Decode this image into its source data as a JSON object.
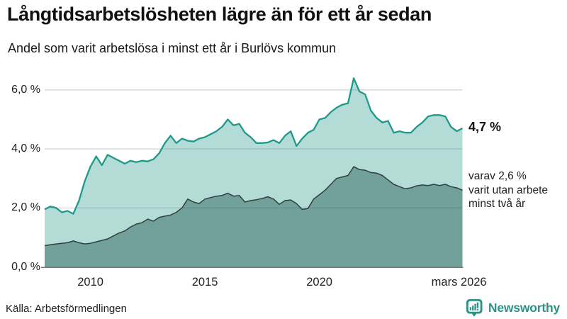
{
  "header": {
    "title": "Långtidsarbetslösheten lägre än för ett år sedan",
    "subtitle": "Andel som varit arbetslösa i minst ett år i Burlövs kommun"
  },
  "annotations": {
    "latest_value": "4,7 %",
    "series2_lines": [
      "varav 2,6 %",
      "varit utan arbete",
      "minst två år"
    ]
  },
  "footer": {
    "source": "Källa: Arbetsförmedlingen",
    "brand": "Newsworthy",
    "brand_color": "#2d9285",
    "logo_icon": "bar-chart-speech-bubble-icon"
  },
  "chart_data": {
    "type": "area",
    "x_unit": "year (monthly series)",
    "x_range": [
      2008.0,
      2026.25
    ],
    "y_range": [
      0,
      6.5
    ],
    "grid": "horizontal",
    "legend": "none",
    "yticks": [
      {
        "label": "6,0 %",
        "value": 6
      },
      {
        "label": "4,0 %",
        "value": 4
      },
      {
        "label": "2,0 %",
        "value": 2
      },
      {
        "label": "0,0 %",
        "value": 0
      }
    ],
    "xticks": [
      {
        "label": "2010",
        "year": 2010
      },
      {
        "label": "2015",
        "year": 2015
      },
      {
        "label": "2020",
        "year": 2020
      },
      {
        "label": "mars 2026",
        "year": 2026.1
      }
    ],
    "colors": {
      "series1_line": "#1f998a",
      "series1_fill": "#b5dbd5",
      "series2_line": "#31403c",
      "series2_fill": "#74a19b",
      "grid": "#cfd3d5",
      "axis": "#6e7675"
    },
    "series": [
      {
        "name": "Arbetslösa minst ett år",
        "latest_label": "4,7 %",
        "latest_value": 4.7,
        "points": [
          [
            2008.0,
            1.95
          ],
          [
            2008.25,
            2.05
          ],
          [
            2008.5,
            2.0
          ],
          [
            2008.75,
            1.85
          ],
          [
            2009.0,
            1.9
          ],
          [
            2009.25,
            1.8
          ],
          [
            2009.5,
            2.25
          ],
          [
            2009.75,
            2.9
          ],
          [
            2010.0,
            3.4
          ],
          [
            2010.25,
            3.75
          ],
          [
            2010.5,
            3.45
          ],
          [
            2010.75,
            3.8
          ],
          [
            2011.0,
            3.7
          ],
          [
            2011.25,
            3.6
          ],
          [
            2011.5,
            3.5
          ],
          [
            2011.75,
            3.6
          ],
          [
            2012.0,
            3.55
          ],
          [
            2012.25,
            3.6
          ],
          [
            2012.5,
            3.58
          ],
          [
            2012.75,
            3.65
          ],
          [
            2013.0,
            3.85
          ],
          [
            2013.25,
            4.2
          ],
          [
            2013.5,
            4.45
          ],
          [
            2013.75,
            4.2
          ],
          [
            2014.0,
            4.35
          ],
          [
            2014.25,
            4.28
          ],
          [
            2014.5,
            4.25
          ],
          [
            2014.75,
            4.35
          ],
          [
            2015.0,
            4.4
          ],
          [
            2015.25,
            4.5
          ],
          [
            2015.5,
            4.6
          ],
          [
            2015.75,
            4.75
          ],
          [
            2016.0,
            5.0
          ],
          [
            2016.25,
            4.8
          ],
          [
            2016.5,
            4.85
          ],
          [
            2016.75,
            4.55
          ],
          [
            2017.0,
            4.4
          ],
          [
            2017.25,
            4.2
          ],
          [
            2017.5,
            4.2
          ],
          [
            2017.75,
            4.22
          ],
          [
            2018.0,
            4.3
          ],
          [
            2018.25,
            4.2
          ],
          [
            2018.5,
            4.45
          ],
          [
            2018.75,
            4.6
          ],
          [
            2019.0,
            4.1
          ],
          [
            2019.25,
            4.35
          ],
          [
            2019.5,
            4.55
          ],
          [
            2019.75,
            4.65
          ],
          [
            2020.0,
            5.0
          ],
          [
            2020.25,
            5.05
          ],
          [
            2020.5,
            5.25
          ],
          [
            2020.75,
            5.4
          ],
          [
            2021.0,
            5.5
          ],
          [
            2021.25,
            5.55
          ],
          [
            2021.5,
            6.4
          ],
          [
            2021.75,
            5.95
          ],
          [
            2022.0,
            5.85
          ],
          [
            2022.25,
            5.3
          ],
          [
            2022.5,
            5.05
          ],
          [
            2022.75,
            4.9
          ],
          [
            2023.0,
            4.95
          ],
          [
            2023.25,
            4.55
          ],
          [
            2023.5,
            4.6
          ],
          [
            2023.75,
            4.55
          ],
          [
            2024.0,
            4.55
          ],
          [
            2024.25,
            4.75
          ],
          [
            2024.5,
            4.9
          ],
          [
            2024.75,
            5.1
          ],
          [
            2025.0,
            5.15
          ],
          [
            2025.25,
            5.15
          ],
          [
            2025.5,
            5.1
          ],
          [
            2025.75,
            4.75
          ],
          [
            2026.0,
            4.6
          ],
          [
            2026.25,
            4.7
          ]
        ]
      },
      {
        "name": "Varav utan arbete minst två år",
        "latest_label": "2,6 %",
        "latest_value": 2.6,
        "points": [
          [
            2008.0,
            0.72
          ],
          [
            2008.25,
            0.75
          ],
          [
            2008.5,
            0.78
          ],
          [
            2008.75,
            0.8
          ],
          [
            2009.0,
            0.82
          ],
          [
            2009.25,
            0.88
          ],
          [
            2009.5,
            0.82
          ],
          [
            2009.75,
            0.78
          ],
          [
            2010.0,
            0.8
          ],
          [
            2010.25,
            0.85
          ],
          [
            2010.5,
            0.9
          ],
          [
            2010.75,
            0.95
          ],
          [
            2011.0,
            1.05
          ],
          [
            2011.25,
            1.15
          ],
          [
            2011.5,
            1.22
          ],
          [
            2011.75,
            1.35
          ],
          [
            2012.0,
            1.45
          ],
          [
            2012.25,
            1.5
          ],
          [
            2012.5,
            1.62
          ],
          [
            2012.75,
            1.55
          ],
          [
            2013.0,
            1.68
          ],
          [
            2013.25,
            1.72
          ],
          [
            2013.5,
            1.76
          ],
          [
            2013.75,
            1.85
          ],
          [
            2014.0,
            2.0
          ],
          [
            2014.25,
            2.3
          ],
          [
            2014.5,
            2.2
          ],
          [
            2014.75,
            2.15
          ],
          [
            2015.0,
            2.3
          ],
          [
            2015.25,
            2.35
          ],
          [
            2015.5,
            2.4
          ],
          [
            2015.75,
            2.42
          ],
          [
            2016.0,
            2.5
          ],
          [
            2016.25,
            2.4
          ],
          [
            2016.5,
            2.42
          ],
          [
            2016.75,
            2.2
          ],
          [
            2017.0,
            2.25
          ],
          [
            2017.25,
            2.28
          ],
          [
            2017.5,
            2.32
          ],
          [
            2017.75,
            2.38
          ],
          [
            2018.0,
            2.3
          ],
          [
            2018.25,
            2.12
          ],
          [
            2018.5,
            2.25
          ],
          [
            2018.75,
            2.27
          ],
          [
            2019.0,
            2.15
          ],
          [
            2019.25,
            1.95
          ],
          [
            2019.5,
            1.98
          ],
          [
            2019.75,
            2.3
          ],
          [
            2020.0,
            2.45
          ],
          [
            2020.25,
            2.6
          ],
          [
            2020.5,
            2.8
          ],
          [
            2020.75,
            3.0
          ],
          [
            2021.0,
            3.05
          ],
          [
            2021.25,
            3.1
          ],
          [
            2021.5,
            3.4
          ],
          [
            2021.75,
            3.3
          ],
          [
            2022.0,
            3.28
          ],
          [
            2022.25,
            3.2
          ],
          [
            2022.5,
            3.18
          ],
          [
            2022.75,
            3.1
          ],
          [
            2023.0,
            2.95
          ],
          [
            2023.25,
            2.8
          ],
          [
            2023.5,
            2.72
          ],
          [
            2023.75,
            2.65
          ],
          [
            2024.0,
            2.68
          ],
          [
            2024.25,
            2.75
          ],
          [
            2024.5,
            2.78
          ],
          [
            2024.75,
            2.76
          ],
          [
            2025.0,
            2.8
          ],
          [
            2025.25,
            2.76
          ],
          [
            2025.5,
            2.8
          ],
          [
            2025.75,
            2.72
          ],
          [
            2026.0,
            2.68
          ],
          [
            2026.25,
            2.6
          ]
        ]
      }
    ]
  }
}
